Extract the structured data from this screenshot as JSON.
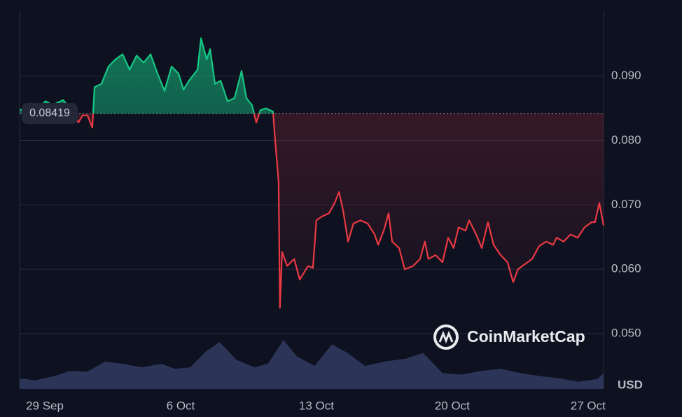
{
  "chart_data": {
    "type": "line",
    "watermark": "CoinMarketCap",
    "y_unit": "USD",
    "baseline": 0.08419,
    "xlim": [
      -1.3,
      28.8
    ],
    "xticks": [
      {
        "value": 0,
        "label": "29 Sep"
      },
      {
        "value": 7,
        "label": "6 Oct"
      },
      {
        "value": 14,
        "label": "13 Oct"
      },
      {
        "value": 21,
        "label": "20 Oct"
      },
      {
        "value": 28,
        "label": "27 Oct"
      }
    ],
    "ylim": [
      0.0414,
      0.1002
    ],
    "yticks": [
      {
        "value": 0.05,
        "label": "0.050"
      },
      {
        "value": 0.06,
        "label": "0.060"
      },
      {
        "value": 0.07,
        "label": "0.070"
      },
      {
        "value": 0.08,
        "label": "0.080"
      },
      {
        "value": 0.09,
        "label": "0.090"
      }
    ],
    "grid": true,
    "above_color": "#16c784",
    "below_color": "#ea3943",
    "x": [
      -1.3,
      -0.51,
      0.04,
      0.4,
      0.94,
      1.3,
      1.73,
      1.95,
      2.2,
      2.45,
      2.56,
      2.92,
      3.28,
      3.64,
      4.01,
      4.37,
      4.73,
      5.09,
      5.45,
      5.81,
      6.17,
      6.53,
      6.89,
      7.15,
      7.43,
      7.87,
      8.05,
      8.34,
      8.52,
      8.77,
      9.06,
      9.42,
      9.78,
      10.14,
      10.39,
      10.68,
      10.9,
      11.11,
      11.4,
      11.76,
      11.87,
      12.05,
      12.12,
      12.23,
      12.49,
      12.85,
      13.14,
      13.57,
      13.82,
      14.0,
      14.29,
      14.65,
      14.94,
      15.16,
      15.37,
      15.63,
      15.91,
      16.27,
      16.64,
      17.0,
      17.18,
      17.47,
      17.72,
      17.9,
      18.26,
      18.55,
      18.98,
      19.34,
      19.59,
      19.77,
      20.14,
      20.5,
      20.79,
      21.07,
      21.33,
      21.69,
      21.87,
      22.23,
      22.52,
      22.84,
      23.13,
      23.49,
      23.85,
      24.14,
      24.39,
      24.75,
      25.12,
      25.48,
      25.84,
      26.2,
      26.38,
      26.74,
      27.1,
      27.46,
      27.82,
      28.18,
      28.36,
      28.58,
      28.8
    ],
    "values": [
      0.0848,
      0.0845,
      0.0861,
      0.0855,
      0.0863,
      0.085,
      0.0828,
      0.0839,
      0.0839,
      0.082,
      0.0883,
      0.0888,
      0.0915,
      0.0926,
      0.0934,
      0.091,
      0.0932,
      0.0921,
      0.0934,
      0.0904,
      0.0877,
      0.0915,
      0.0904,
      0.0879,
      0.0893,
      0.091,
      0.0959,
      0.0926,
      0.0942,
      0.0888,
      0.0893,
      0.0861,
      0.0866,
      0.0908,
      0.0866,
      0.0855,
      0.0828,
      0.0847,
      0.085,
      0.0845,
      0.0801,
      0.0736,
      0.054,
      0.0627,
      0.0605,
      0.0616,
      0.0584,
      0.0605,
      0.0602,
      0.0676,
      0.0682,
      0.0687,
      0.0703,
      0.072,
      0.0692,
      0.0643,
      0.0671,
      0.0676,
      0.0671,
      0.0654,
      0.0638,
      0.066,
      0.0687,
      0.0643,
      0.0633,
      0.06,
      0.0605,
      0.0616,
      0.0643,
      0.0616,
      0.0622,
      0.0611,
      0.0649,
      0.0633,
      0.0665,
      0.066,
      0.0676,
      0.0654,
      0.0633,
      0.0673,
      0.0638,
      0.0622,
      0.0611,
      0.058,
      0.06,
      0.0608,
      0.0616,
      0.0636,
      0.0643,
      0.0638,
      0.0649,
      0.0643,
      0.0654,
      0.0649,
      0.0665,
      0.0673,
      0.0673,
      0.0703,
      0.0668
    ],
    "volume": {
      "color": "#2c3557",
      "x": [
        -1.3,
        -0.5,
        0.5,
        1.3,
        2.2,
        3.1,
        4.0,
        5.0,
        6.0,
        6.7,
        7.5,
        8.3,
        9.0,
        9.9,
        10.8,
        11.5,
        12.3,
        13.0,
        13.9,
        14.8,
        15.6,
        16.5,
        17.5,
        18.6,
        19.5,
        20.5,
        21.5,
        22.5,
        23.5,
        24.5,
        25.5,
        26.5,
        27.5,
        28.5,
        28.8
      ],
      "values": [
        15,
        12,
        18,
        25,
        24,
        38,
        35,
        30,
        35,
        28,
        30,
        52,
        65,
        40,
        30,
        35,
        68,
        45,
        32,
        62,
        50,
        32,
        38,
        42,
        50,
        22,
        20,
        25,
        28,
        22,
        18,
        15,
        10,
        14,
        22
      ]
    }
  }
}
